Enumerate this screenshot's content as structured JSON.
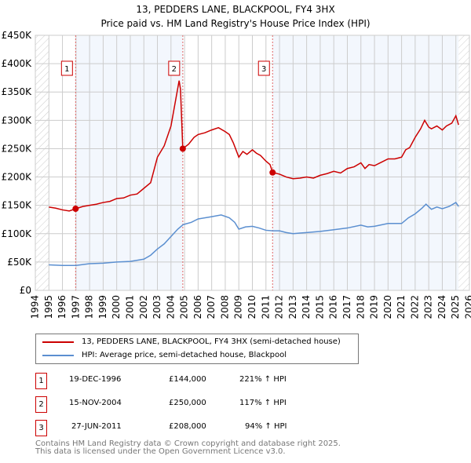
{
  "chart_data": {
    "type": "line",
    "title": "13, PEDDERS LANE, BLACKPOOL, FY4 3HX",
    "subtitle": "Price paid vs. HM Land Registry's House Price Index (HPI)",
    "xlim": [
      1994,
      2026
    ],
    "ylim": [
      0,
      450000
    ],
    "x_ticks": [
      "1994",
      "1995",
      "1996",
      "1997",
      "1998",
      "1999",
      "2000",
      "2001",
      "2002",
      "2003",
      "2004",
      "2005",
      "2006",
      "2007",
      "2008",
      "2009",
      "2010",
      "2011",
      "2012",
      "2013",
      "2014",
      "2015",
      "2016",
      "2017",
      "2018",
      "2019",
      "2020",
      "2021",
      "2022",
      "2023",
      "2024",
      "2025",
      "2026"
    ],
    "y_ticks": [
      "£0",
      "£50K",
      "£100K",
      "£150K",
      "£200K",
      "£250K",
      "£300K",
      "£350K",
      "£400K",
      "£450K"
    ],
    "series": [
      {
        "name": "13, PEDDERS LANE, BLACKPOOL, FY4 3HX (semi-detached house)",
        "color": "#cc0000",
        "x": [
          1995,
          1995.5,
          1996,
          1996.5,
          1996.97,
          1997.5,
          1998,
          1998.5,
          1999,
          1999.5,
          2000,
          2000.5,
          2001,
          2001.5,
          2002,
          2002.5,
          2003,
          2003.5,
          2004,
          2004.3,
          2004.6,
          2004.7,
          2004.87,
          2005.3,
          2005.7,
          2006,
          2006.5,
          2007,
          2007.5,
          2008,
          2008.3,
          2008.6,
          2009,
          2009.3,
          2009.6,
          2010,
          2010.3,
          2010.6,
          2011,
          2011.3,
          2011.49,
          2012,
          2012.5,
          2013,
          2013.5,
          2014,
          2014.5,
          2015,
          2015.5,
          2016,
          2016.5,
          2017,
          2017.5,
          2018,
          2018.3,
          2018.6,
          2019,
          2019.5,
          2020,
          2020.5,
          2021,
          2021.3,
          2021.6,
          2022,
          2022.4,
          2022.7,
          2023,
          2023.2,
          2023.6,
          2024,
          2024.3,
          2024.7,
          2025,
          2025.2
        ],
        "values": [
          147000,
          145000,
          142000,
          140000,
          144000,
          148000,
          150000,
          152000,
          155000,
          157000,
          162000,
          163000,
          168000,
          170000,
          180000,
          190000,
          235000,
          255000,
          290000,
          330000,
          370000,
          355000,
          250000,
          258000,
          270000,
          275000,
          278000,
          283000,
          287000,
          280000,
          275000,
          260000,
          235000,
          245000,
          240000,
          248000,
          242000,
          238000,
          228000,
          222000,
          208000,
          205000,
          200000,
          197000,
          198000,
          200000,
          198000,
          203000,
          206000,
          210000,
          207000,
          215000,
          218000,
          225000,
          215000,
          222000,
          220000,
          226000,
          232000,
          232000,
          235000,
          248000,
          252000,
          270000,
          285000,
          300000,
          288000,
          285000,
          290000,
          283000,
          290000,
          295000,
          308000,
          292000
        ]
      },
      {
        "name": "HPI: Average price, semi-detached house, Blackpool",
        "color": "#5b8fd0",
        "x": [
          1995,
          1996,
          1997,
          1998,
          1999,
          2000,
          2001,
          2002,
          2002.5,
          2003,
          2003.5,
          2004,
          2004.5,
          2004.9,
          2005.5,
          2006,
          2007,
          2007.7,
          2008.3,
          2008.7,
          2009,
          2009.5,
          2010,
          2010.5,
          2011,
          2011.5,
          2012,
          2012.5,
          2013,
          2013.5,
          2014,
          2015,
          2016,
          2017,
          2018,
          2018.5,
          2019,
          2020,
          2021,
          2021.5,
          2022,
          2022.5,
          2022.8,
          2023.2,
          2023.6,
          2024,
          2024.5,
          2025,
          2025.2
        ],
        "values": [
          45000,
          44000,
          44000,
          47000,
          48000,
          50000,
          51000,
          55000,
          62000,
          73000,
          82000,
          95000,
          108000,
          116000,
          120000,
          126000,
          130000,
          133000,
          128000,
          120000,
          108000,
          112000,
          113000,
          110000,
          106000,
          105000,
          105000,
          102000,
          100000,
          101000,
          102000,
          104000,
          107000,
          110000,
          115000,
          112000,
          113000,
          118000,
          118000,
          128000,
          135000,
          145000,
          152000,
          143000,
          147000,
          144000,
          148000,
          155000,
          148000
        ]
      }
    ],
    "sales": [
      {
        "label": "1",
        "x": 1996.97,
        "value": 144000
      },
      {
        "label": "2",
        "x": 2004.87,
        "value": 250000
      },
      {
        "label": "3",
        "x": 2011.49,
        "value": 208000
      }
    ]
  },
  "legend": [
    "13, PEDDERS LANE, BLACKPOOL, FY4 3HX (semi-detached house)",
    "HPI: Average price, semi-detached house, Blackpool"
  ],
  "table": [
    {
      "num": "1",
      "date": "19-DEC-1996",
      "price": "£144,000",
      "hpi": "221% ↑ HPI"
    },
    {
      "num": "2",
      "date": "15-NOV-2004",
      "price": "£250,000",
      "hpi": "117% ↑ HPI"
    },
    {
      "num": "3",
      "date": "27-JUN-2011",
      "price": "£208,000",
      "hpi": "94% ↑ HPI"
    }
  ],
  "footer": [
    "Contains HM Land Registry data © Crown copyright and database right 2025.",
    "This data is licensed under the Open Government Licence v3.0."
  ]
}
